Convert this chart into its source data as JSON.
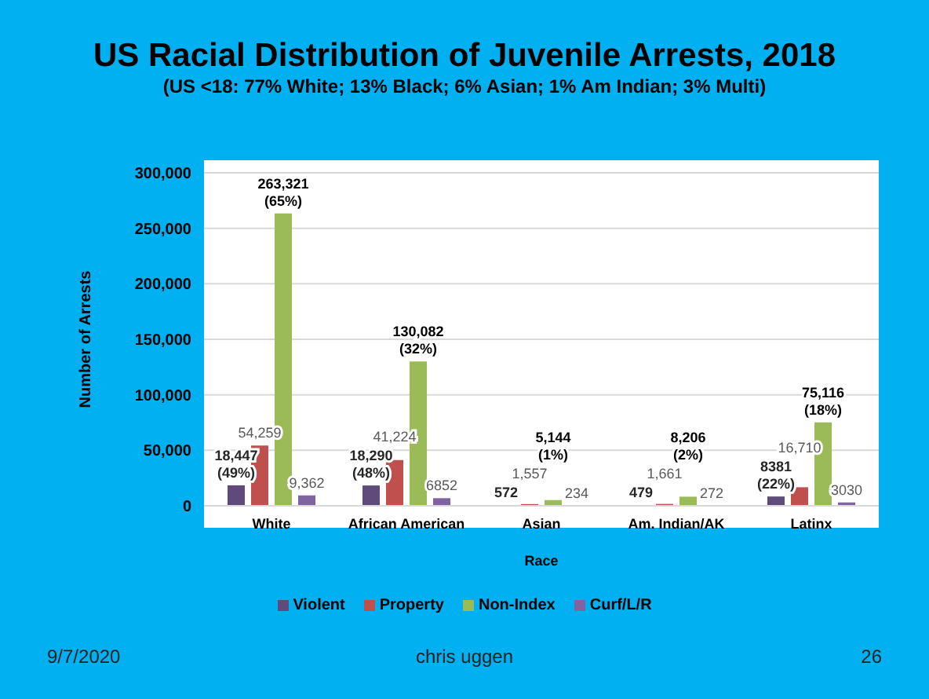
{
  "chart_data": {
    "type": "bar",
    "title": "US Racial Distribution of Juvenile Arrests, 2018",
    "subtitle": "(US <18: 77% White; 13% Black; 6% Asian; 1% Am Indian; 3% Multi)",
    "xlabel": "Race",
    "ylabel": "Number of Arrests",
    "categories": [
      "White",
      "African American",
      "Asian",
      "Am. Indian/AK",
      "Latinx"
    ],
    "series": [
      {
        "name": "Violent",
        "color": "#604a7b",
        "values": [
          18447,
          18290,
          572,
          479,
          8381
        ],
        "value_labels": [
          "18,447\n(49%)",
          "18,290\n(48%)",
          "572",
          "479",
          "8381\n(22%)"
        ]
      },
      {
        "name": "Property",
        "color": "#c0504d",
        "values": [
          54259,
          41224,
          1557,
          1661,
          16710
        ],
        "value_labels": [
          "54,259",
          "41,224",
          "1,557",
          "1,661",
          "16,710"
        ]
      },
      {
        "name": "Non-Index",
        "color": "#9bbb59",
        "values": [
          263321,
          130082,
          5144,
          8206,
          75116
        ],
        "value_labels": [
          "263,321\n(65%)",
          "130,082\n(32%)",
          "5,144\n(1%)",
          "8,206\n(2%)",
          "75,116\n(18%)"
        ]
      },
      {
        "name": "Curf/L/R",
        "color": "#8064a2",
        "values": [
          9362,
          6852,
          234,
          272,
          3030
        ],
        "value_labels": [
          "9,362",
          "6852",
          "234",
          "272",
          "3030"
        ]
      }
    ],
    "ylim": [
      0,
      300000
    ],
    "yticks": [
      0,
      {
        "value": 50000,
        "label": "50,000"
      },
      {
        "value": 100000,
        "label": "100,000"
      },
      {
        "value": 150000,
        "label": "150,000"
      },
      {
        "value": 200000,
        "label": "200,000"
      },
      {
        "value": 250000,
        "label": "250,000"
      },
      {
        "value": 300000,
        "label": "300,000"
      }
    ],
    "grid": "y",
    "legend": "bottom",
    "annotations": [
      "9/7/2020",
      "chris uggen",
      "26"
    ]
  }
}
